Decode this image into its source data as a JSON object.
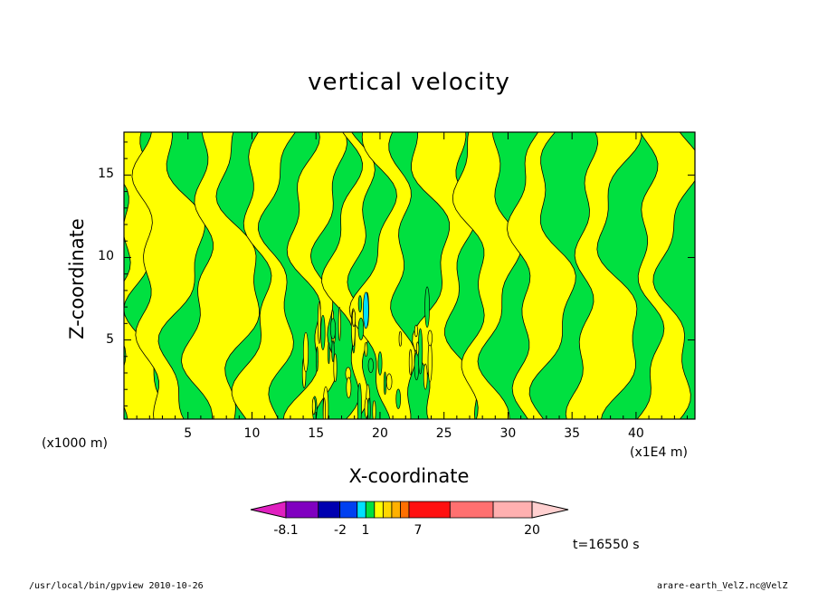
{
  "chart_data": {
    "type": "heatmap",
    "title": "vertical velocity",
    "xlabel": "X-coordinate",
    "ylabel": "Z-coordinate",
    "x_unit_left": "(x1000 m)",
    "x_unit_right": "(x1E4 m)",
    "xlim": [
      0,
      44.6
    ],
    "ylim": [
      0.2,
      17.6
    ],
    "xticks": [
      5,
      10,
      15,
      20,
      25,
      30,
      35,
      40
    ],
    "yticks": [
      5,
      10,
      15
    ],
    "colorbar": {
      "labels": [
        "-8.1",
        "-2",
        "1",
        "7",
        "20"
      ],
      "colors": [
        "#e020c0",
        "#8000c0",
        "#0000b0",
        "#0040f0",
        "#00e0ff",
        "#00e040",
        "#ffff00",
        "#ffd700",
        "#ffb000",
        "#ff7000",
        "#ff1010",
        "#ff7070",
        "#ffb0b0",
        "#ffd0d0"
      ]
    },
    "dominant_fills": {
      "positive": "#ffff00",
      "negative": "#00e040"
    },
    "time_label": "t=16550 s"
  },
  "footer": {
    "left": "/usr/local/bin/gpview  2010-10-26",
    "right": "arare-earth_VelZ.nc@VelZ"
  }
}
